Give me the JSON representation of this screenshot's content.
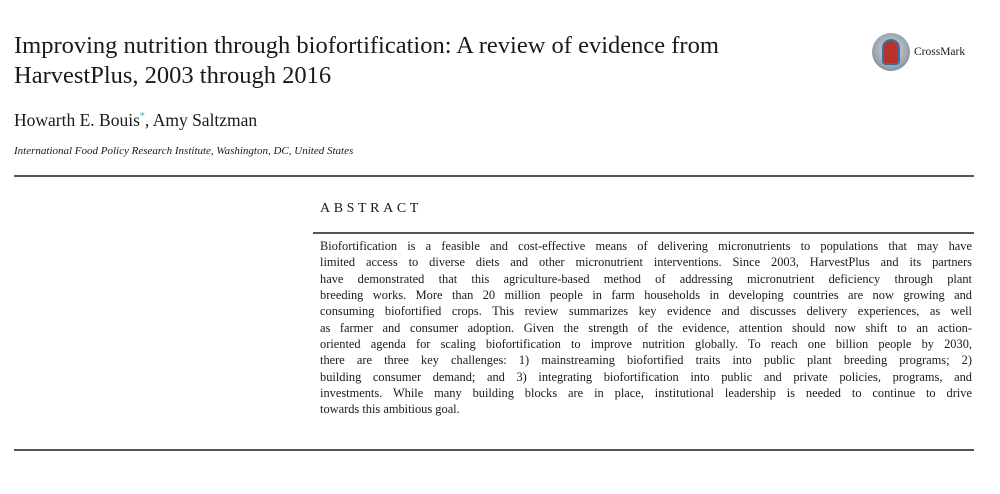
{
  "title_lines": [
    "Improving nutrition through biofortification: A review of evidence from",
    "HarvestPlus, 2003 through 2016"
  ],
  "crossmark": {
    "label": "CrossMark"
  },
  "authors": {
    "first": "Howarth E. Bouis",
    "mark": "*",
    "rest": ", Amy Saltzman"
  },
  "affiliation": "International Food Policy Research Institute, Washington, DC, United States",
  "abstract": {
    "heading": "ABSTRACT",
    "lines": [
      "Biofortification is a feasible and cost-effective means of delivering micronutrients to populations that may have",
      "limited access to diverse diets and other micronutrient interventions. Since 2003, HarvestPlus and its partners",
      "have demonstrated that this agriculture-based method of addressing micronutrient deficiency through plant",
      "breeding works. More than 20 million people in farm households in developing countries are now growing and",
      "consuming biofortified crops. This review summarizes key evidence and discusses delivery experiences, as well",
      "as farmer and consumer adoption. Given the strength of the evidence, attention should now shift to an action-",
      "oriented agenda for scaling biofortification to improve nutrition globally. To reach one billion people by 2030,",
      "there are three key challenges: 1) mainstreaming biofortified traits into public plant breeding programs; 2)",
      "building consumer demand; and 3) integrating biofortification into public and private policies, programs, and",
      "investments. While many building blocks are in place, institutional leadership is needed to continue to drive",
      "towards this ambitious goal."
    ]
  }
}
